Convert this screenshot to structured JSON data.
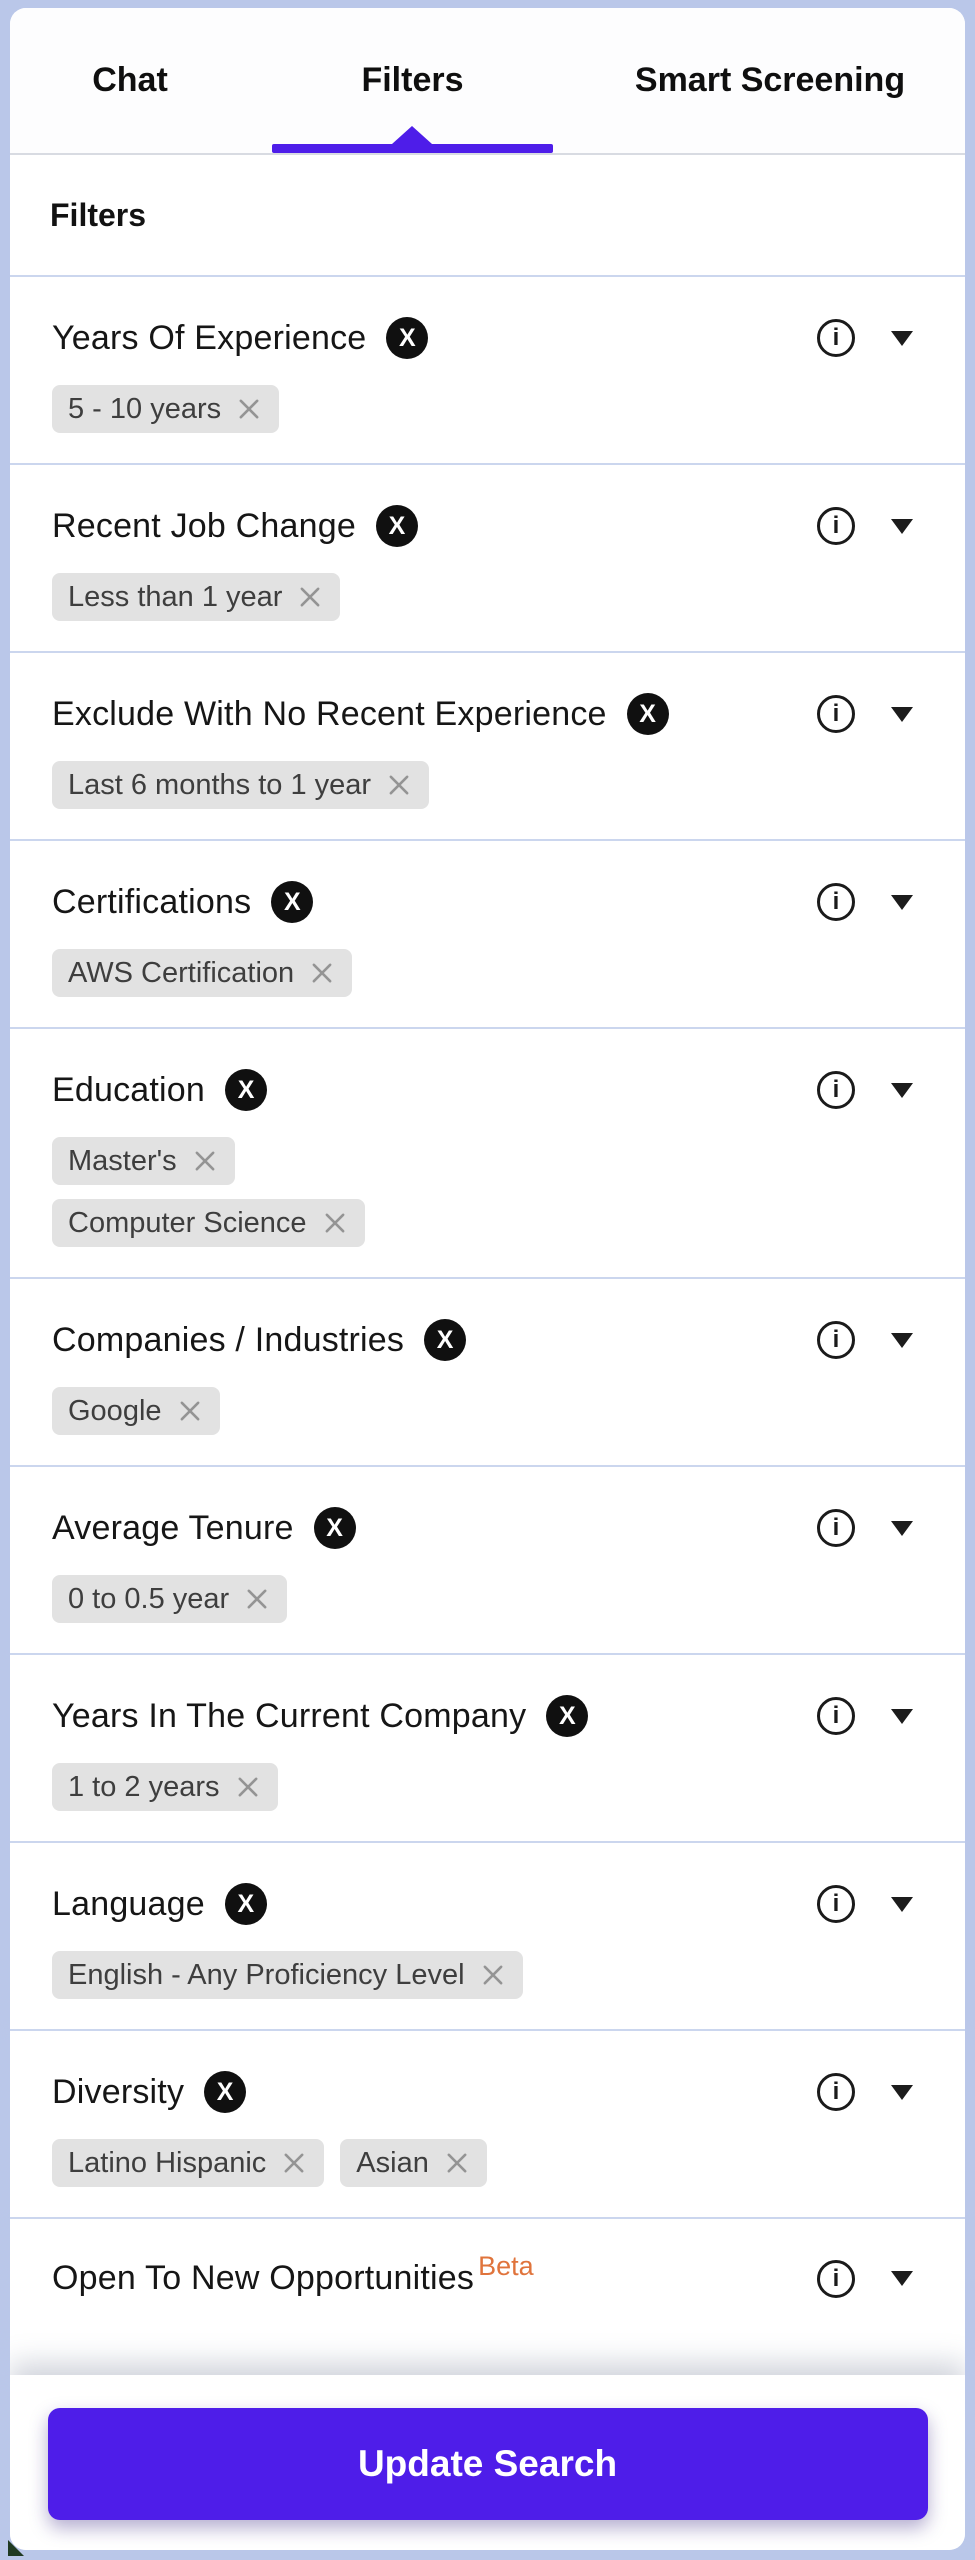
{
  "tabs": [
    {
      "label": "Chat",
      "active": false
    },
    {
      "label": "Filters",
      "active": true
    },
    {
      "label": "Smart Screening",
      "active": false
    }
  ],
  "panel": {
    "title": "Filters"
  },
  "filters": [
    {
      "title": "Years Of Experience",
      "clearable": true,
      "layout": "row",
      "chips": [
        "5 - 10 years"
      ]
    },
    {
      "title": "Recent Job Change",
      "clearable": true,
      "layout": "row",
      "chips": [
        "Less than 1 year"
      ]
    },
    {
      "title": "Exclude With No Recent Experience",
      "clearable": true,
      "layout": "row",
      "chips": [
        "Last 6 months to 1 year"
      ]
    },
    {
      "title": "Certifications",
      "clearable": true,
      "layout": "row",
      "chips": [
        "AWS Certification"
      ]
    },
    {
      "title": "Education",
      "clearable": true,
      "layout": "stack",
      "chips": [
        "Master's",
        "Computer Science"
      ]
    },
    {
      "title": "Companies / Industries",
      "clearable": true,
      "layout": "row",
      "chips": [
        "Google"
      ]
    },
    {
      "title": "Average Tenure",
      "clearable": true,
      "layout": "row",
      "chips": [
        "0 to 0.5 year"
      ]
    },
    {
      "title": "Years In The Current Company",
      "clearable": true,
      "layout": "row",
      "chips": [
        "1 to 2 years"
      ]
    },
    {
      "title": "Language",
      "clearable": true,
      "layout": "row",
      "chips": [
        "English - Any Proficiency Level"
      ]
    },
    {
      "title": "Diversity",
      "clearable": true,
      "layout": "row",
      "chips": [
        "Latino Hispanic",
        "Asian"
      ]
    },
    {
      "title": "Open To New Opportunities",
      "clearable": false,
      "beta": true,
      "layout": "row",
      "chips": []
    }
  ],
  "labels": {
    "beta": "Beta",
    "update_button": "Update Search"
  },
  "icons": {
    "clear_filter": "X",
    "info": "i",
    "collapse": "caret-down-icon",
    "chip_remove": "x-cross"
  },
  "colors": {
    "accent": "#4e1de9",
    "beta_orange": "#e0743c",
    "chip_bg": "#e2e2e2",
    "frame_bg": "#bac7e9",
    "divider": "#cbd6ee",
    "badge_bg": "#101010"
  }
}
